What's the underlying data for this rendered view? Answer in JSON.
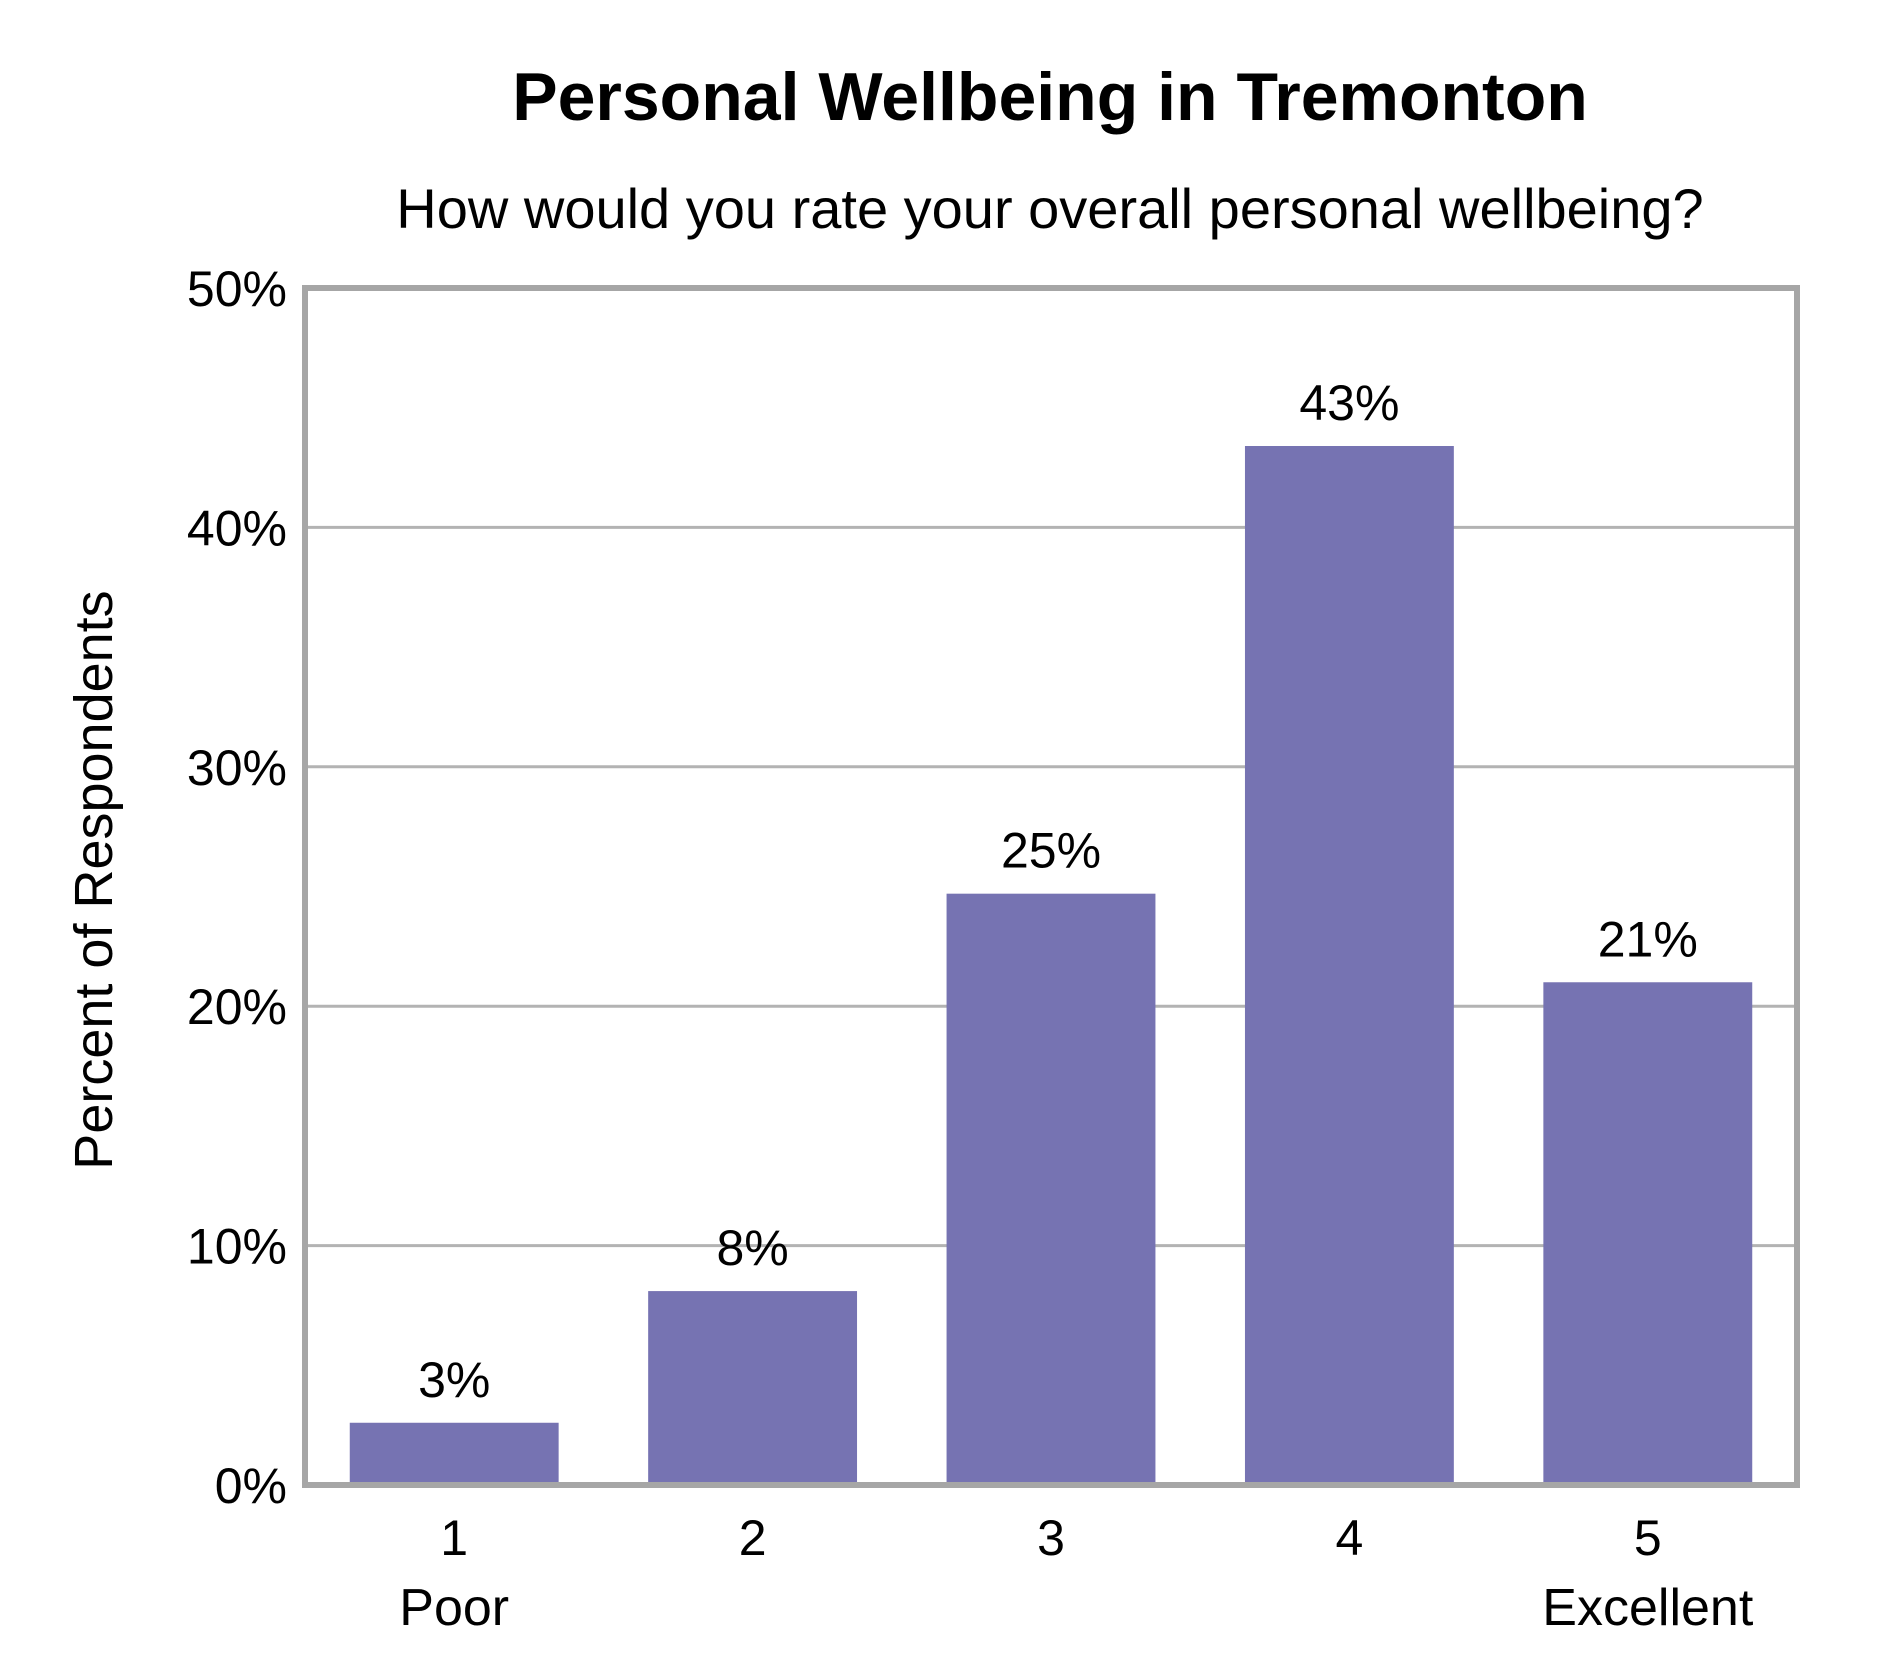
{
  "chart_data": {
    "type": "bar",
    "title": "Personal Wellbeing in Tremonton",
    "subtitle": "How would you rate your overall personal wellbeing?",
    "xlabel": "",
    "ylabel": "Percent of Respondents",
    "categories": [
      "1",
      "2",
      "3",
      "4",
      "5"
    ],
    "category_sublabels": [
      "Poor",
      "",
      "",
      "",
      "Excellent"
    ],
    "values": [
      2.6,
      8.1,
      24.7,
      43.4,
      21.0
    ],
    "value_labels": [
      "3%",
      "8%",
      "25%",
      "43%",
      "21%"
    ],
    "ylim": [
      0,
      50
    ],
    "yticks": [
      0,
      10,
      20,
      30,
      40,
      50
    ],
    "ytick_labels": [
      "0%",
      "10%",
      "20%",
      "30%",
      "40%",
      "50%"
    ],
    "grid": true,
    "legend": "none",
    "colors": {
      "bar": "#7673B2",
      "grid": "#B3B3B3",
      "frame": "#A6A6A6"
    }
  }
}
